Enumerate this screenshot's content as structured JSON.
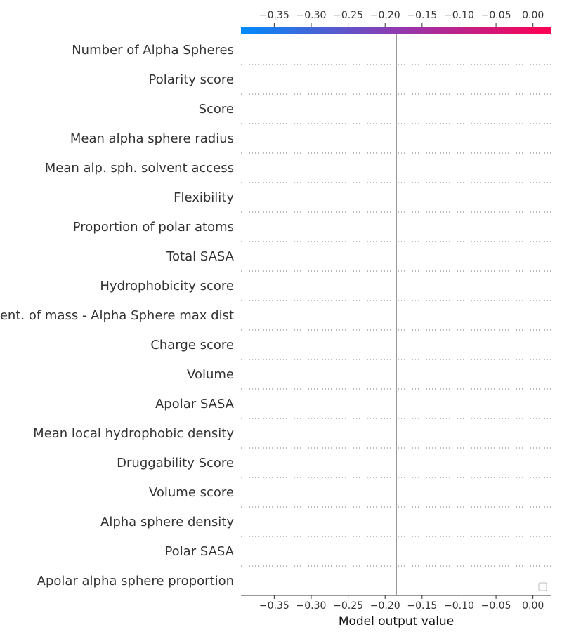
{
  "chart_data": {
    "type": "decision",
    "features": [
      "Number of Alpha Spheres",
      "Polarity score",
      "Score",
      "Mean alpha sphere radius",
      "Mean alp. sph. solvent access",
      "Flexibility",
      "Proportion of polar atoms",
      "Total SASA",
      "Hydrophobicity score",
      "Cent. of mass - Alpha Sphere max dist",
      "Charge score",
      "Volume",
      "Apolar SASA",
      "Mean local hydrophobic density",
      "Druggability Score",
      "Volume score",
      "Alpha sphere density",
      "Polar SASA",
      "Apolar alpha sphere proportion"
    ],
    "xlim": [
      -0.395,
      0.025
    ],
    "ticks": [
      -0.35,
      -0.3,
      -0.25,
      -0.2,
      -0.15,
      -0.1,
      -0.05,
      0.0
    ],
    "tick_labels": [
      "−0.35",
      "−0.30",
      "−0.25",
      "−0.20",
      "−0.15",
      "−0.10",
      "−0.05",
      "0.00"
    ],
    "base_value": -0.185,
    "xlabel": "Model output value",
    "colorbar": {
      "start": "#008bfb",
      "mid": "#8f3ab0",
      "end": "#ff0052"
    },
    "grid": "dotted horizontal"
  }
}
